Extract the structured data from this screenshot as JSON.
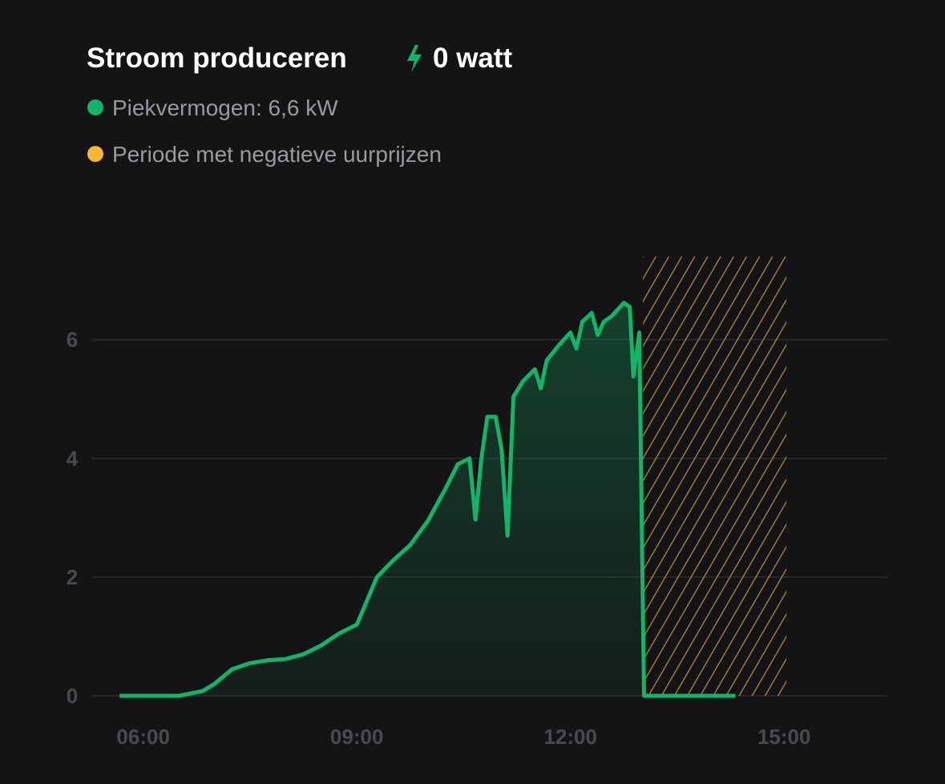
{
  "chart_data": {
    "type": "area",
    "title": "Stroom produceren",
    "current_value": "0 watt",
    "x": [
      "05:40",
      "06:30",
      "06:50",
      "07:00",
      "07:15",
      "07:30",
      "07:45",
      "08:00",
      "08:15",
      "08:30",
      "08:45",
      "09:00",
      "09:17",
      "09:30",
      "09:45",
      "10:00",
      "10:15",
      "10:25",
      "10:35",
      "10:40",
      "10:45",
      "10:50",
      "10:57",
      "11:02",
      "11:07",
      "11:12",
      "11:20",
      "11:30",
      "11:35",
      "11:40",
      "11:50",
      "12:00",
      "12:05",
      "12:10",
      "12:18",
      "12:23",
      "12:28",
      "12:35",
      "12:45",
      "12:50",
      "12:53",
      "12:58",
      "13:02",
      "14:19"
    ],
    "series": [
      {
        "name": "Piekvermogen: 6,6 kW",
        "color": "#12b566",
        "values": [
          0,
          0,
          0.08,
          0.2,
          0.45,
          0.55,
          0.6,
          0.62,
          0.7,
          0.85,
          1.05,
          1.2,
          2.0,
          2.27,
          2.54,
          2.95,
          3.5,
          3.9,
          4.0,
          2.97,
          4.0,
          4.7,
          4.7,
          4.15,
          2.7,
          5.04,
          5.3,
          5.5,
          5.18,
          5.65,
          5.9,
          6.12,
          5.85,
          6.3,
          6.45,
          6.08,
          6.3,
          6.4,
          6.62,
          6.55,
          5.38,
          6.12,
          0,
          0
        ]
      }
    ],
    "bands": [
      {
        "name": "Periode met negatieve uurprijzen",
        "color": "#f5b731",
        "start": "13:01",
        "end": "15:02"
      }
    ],
    "xlim": [
      "05:17",
      "16:27"
    ],
    "xticks": [
      "06:00",
      "09:00",
      "12:00",
      "15:00"
    ],
    "ylim": [
      0,
      7.4
    ],
    "yticks": [
      0,
      2,
      4,
      6
    ],
    "grid": true
  }
}
